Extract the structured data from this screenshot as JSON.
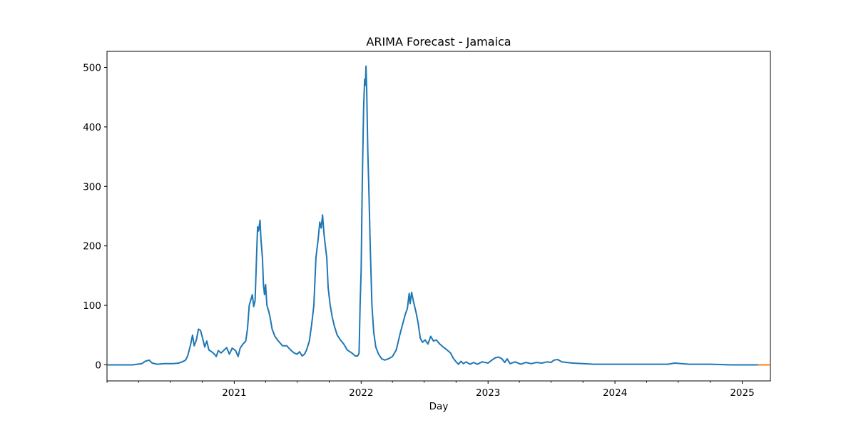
{
  "chart_data": {
    "type": "line",
    "title": "ARIMA Forecast - Jamaica",
    "xlabel": "Day",
    "ylabel": "",
    "x_range": [
      "2020-01-01",
      "2025-03-23"
    ],
    "ylim": [
      -27,
      527
    ],
    "grid": false,
    "legend": "none",
    "x_tick_labels": [
      "2021",
      "2022",
      "2023",
      "2024",
      "2025"
    ],
    "x_tick_dates": [
      "2021-01-01",
      "2022-01-01",
      "2023-01-01",
      "2024-01-01",
      "2025-01-01"
    ],
    "x_minor_tick_dates": [
      "2020-01-01",
      "2020-04-01",
      "2020-07-01",
      "2020-10-01",
      "2021-04-01",
      "2021-07-01",
      "2021-10-01",
      "2022-04-01",
      "2022-07-01",
      "2022-10-01",
      "2023-04-01",
      "2023-07-01",
      "2023-10-01",
      "2024-04-01",
      "2024-07-01",
      "2024-10-01"
    ],
    "y_ticks": [
      0,
      100,
      200,
      300,
      400,
      500
    ],
    "series": [
      {
        "color": "#1f77b4",
        "points": [
          [
            "2020-01-01",
            0
          ],
          [
            "2020-03-15",
            0
          ],
          [
            "2020-04-10",
            2
          ],
          [
            "2020-04-20",
            6
          ],
          [
            "2020-05-01",
            8
          ],
          [
            "2020-05-10",
            3
          ],
          [
            "2020-05-25",
            1
          ],
          [
            "2020-06-15",
            2
          ],
          [
            "2020-07-10",
            2
          ],
          [
            "2020-07-25",
            3
          ],
          [
            "2020-08-08",
            6
          ],
          [
            "2020-08-14",
            8
          ],
          [
            "2020-08-20",
            15
          ],
          [
            "2020-08-28",
            33
          ],
          [
            "2020-09-03",
            50
          ],
          [
            "2020-09-08",
            32
          ],
          [
            "2020-09-14",
            42
          ],
          [
            "2020-09-20",
            60
          ],
          [
            "2020-09-26",
            58
          ],
          [
            "2020-10-02",
            45
          ],
          [
            "2020-10-08",
            30
          ],
          [
            "2020-10-14",
            40
          ],
          [
            "2020-10-20",
            25
          ],
          [
            "2020-10-28",
            22
          ],
          [
            "2020-11-05",
            18
          ],
          [
            "2020-11-10",
            14
          ],
          [
            "2020-11-16",
            24
          ],
          [
            "2020-11-24",
            20
          ],
          [
            "2020-12-03",
            25
          ],
          [
            "2020-12-10",
            29
          ],
          [
            "2020-12-18",
            18
          ],
          [
            "2020-12-26",
            28
          ],
          [
            "2021-01-05",
            24
          ],
          [
            "2021-01-12",
            14
          ],
          [
            "2021-01-18",
            28
          ],
          [
            "2021-01-26",
            35
          ],
          [
            "2021-02-03",
            40
          ],
          [
            "2021-02-08",
            60
          ],
          [
            "2021-02-13",
            100
          ],
          [
            "2021-02-18",
            110
          ],
          [
            "2021-02-22",
            118
          ],
          [
            "2021-02-26",
            98
          ],
          [
            "2021-03-02",
            108
          ],
          [
            "2021-03-06",
            180
          ],
          [
            "2021-03-09",
            232
          ],
          [
            "2021-03-12",
            225
          ],
          [
            "2021-03-16",
            243
          ],
          [
            "2021-03-19",
            210
          ],
          [
            "2021-03-23",
            180
          ],
          [
            "2021-03-26",
            135
          ],
          [
            "2021-03-29",
            118
          ],
          [
            "2021-04-01",
            135
          ],
          [
            "2021-04-05",
            100
          ],
          [
            "2021-04-10",
            90
          ],
          [
            "2021-04-14",
            80
          ],
          [
            "2021-04-20",
            60
          ],
          [
            "2021-04-28",
            48
          ],
          [
            "2021-05-08",
            40
          ],
          [
            "2021-05-20",
            32
          ],
          [
            "2021-06-01",
            32
          ],
          [
            "2021-06-12",
            25
          ],
          [
            "2021-06-22",
            20
          ],
          [
            "2021-07-01",
            18
          ],
          [
            "2021-07-08",
            22
          ],
          [
            "2021-07-15",
            15
          ],
          [
            "2021-07-22",
            18
          ],
          [
            "2021-07-28",
            25
          ],
          [
            "2021-08-05",
            40
          ],
          [
            "2021-08-12",
            70
          ],
          [
            "2021-08-18",
            100
          ],
          [
            "2021-08-24",
            180
          ],
          [
            "2021-08-30",
            210
          ],
          [
            "2021-09-04",
            240
          ],
          [
            "2021-09-08",
            230
          ],
          [
            "2021-09-12",
            252
          ],
          [
            "2021-09-16",
            220
          ],
          [
            "2021-09-20",
            200
          ],
          [
            "2021-09-24",
            180
          ],
          [
            "2021-09-28",
            130
          ],
          [
            "2021-10-04",
            100
          ],
          [
            "2021-10-10",
            80
          ],
          [
            "2021-10-16",
            65
          ],
          [
            "2021-10-24",
            50
          ],
          [
            "2021-11-02",
            42
          ],
          [
            "2021-11-12",
            35
          ],
          [
            "2021-11-22",
            25
          ],
          [
            "2021-12-05",
            20
          ],
          [
            "2021-12-15",
            15
          ],
          [
            "2021-12-22",
            15
          ],
          [
            "2021-12-26",
            20
          ],
          [
            "2021-12-29",
            100
          ],
          [
            "2022-01-01",
            160
          ],
          [
            "2022-01-04",
            300
          ],
          [
            "2022-01-08",
            430
          ],
          [
            "2022-01-11",
            480
          ],
          [
            "2022-01-13",
            470
          ],
          [
            "2022-01-15",
            502
          ],
          [
            "2022-01-17",
            460
          ],
          [
            "2022-01-20",
            360
          ],
          [
            "2022-01-23",
            300
          ],
          [
            "2022-01-27",
            200
          ],
          [
            "2022-02-01",
            100
          ],
          [
            "2022-02-06",
            55
          ],
          [
            "2022-02-12",
            30
          ],
          [
            "2022-02-20",
            18
          ],
          [
            "2022-03-01",
            10
          ],
          [
            "2022-03-10",
            8
          ],
          [
            "2022-03-20",
            10
          ],
          [
            "2022-04-01",
            14
          ],
          [
            "2022-04-12",
            25
          ],
          [
            "2022-04-22",
            50
          ],
          [
            "2022-05-01",
            70
          ],
          [
            "2022-05-08",
            85
          ],
          [
            "2022-05-14",
            95
          ],
          [
            "2022-05-19",
            120
          ],
          [
            "2022-05-22",
            103
          ],
          [
            "2022-05-26",
            122
          ],
          [
            "2022-06-01",
            105
          ],
          [
            "2022-06-08",
            88
          ],
          [
            "2022-06-14",
            70
          ],
          [
            "2022-06-20",
            45
          ],
          [
            "2022-06-26",
            38
          ],
          [
            "2022-07-04",
            42
          ],
          [
            "2022-07-12",
            35
          ],
          [
            "2022-07-20",
            48
          ],
          [
            "2022-07-28",
            40
          ],
          [
            "2022-08-05",
            42
          ],
          [
            "2022-08-15",
            35
          ],
          [
            "2022-08-25",
            30
          ],
          [
            "2022-09-05",
            25
          ],
          [
            "2022-09-15",
            20
          ],
          [
            "2022-09-22",
            12
          ],
          [
            "2022-10-01",
            5
          ],
          [
            "2022-10-08",
            1
          ],
          [
            "2022-10-15",
            6
          ],
          [
            "2022-10-22",
            2
          ],
          [
            "2022-10-30",
            5
          ],
          [
            "2022-11-10",
            1
          ],
          [
            "2022-11-20",
            4
          ],
          [
            "2022-12-01",
            1
          ],
          [
            "2022-12-15",
            5
          ],
          [
            "2023-01-01",
            3
          ],
          [
            "2023-01-12",
            8
          ],
          [
            "2023-01-22",
            12
          ],
          [
            "2023-02-01",
            13
          ],
          [
            "2023-02-10",
            10
          ],
          [
            "2023-02-18",
            4
          ],
          [
            "2023-02-25",
            10
          ],
          [
            "2023-03-05",
            2
          ],
          [
            "2023-03-20",
            5
          ],
          [
            "2023-04-05",
            1
          ],
          [
            "2023-04-20",
            4
          ],
          [
            "2023-05-05",
            2
          ],
          [
            "2023-05-20",
            4
          ],
          [
            "2023-06-05",
            3
          ],
          [
            "2023-06-20",
            5
          ],
          [
            "2023-07-01",
            4
          ],
          [
            "2023-07-10",
            8
          ],
          [
            "2023-07-20",
            9
          ],
          [
            "2023-08-01",
            5
          ],
          [
            "2023-08-15",
            4
          ],
          [
            "2023-09-01",
            3
          ],
          [
            "2023-10-01",
            2
          ],
          [
            "2023-11-01",
            1
          ],
          [
            "2023-12-01",
            1
          ],
          [
            "2024-01-01",
            1
          ],
          [
            "2024-02-01",
            1
          ],
          [
            "2024-03-01",
            1
          ],
          [
            "2024-04-01",
            1
          ],
          [
            "2024-05-01",
            1
          ],
          [
            "2024-06-01",
            1
          ],
          [
            "2024-06-20",
            3
          ],
          [
            "2024-07-10",
            2
          ],
          [
            "2024-08-01",
            1
          ],
          [
            "2024-09-01",
            1
          ],
          [
            "2024-10-01",
            1
          ],
          [
            "2024-12-01",
            0
          ],
          [
            "2025-02-15",
            0
          ]
        ]
      },
      {
        "color": "#ff7f0e",
        "points": [
          [
            "2025-02-15",
            0
          ],
          [
            "2025-03-23",
            0
          ]
        ]
      }
    ]
  }
}
